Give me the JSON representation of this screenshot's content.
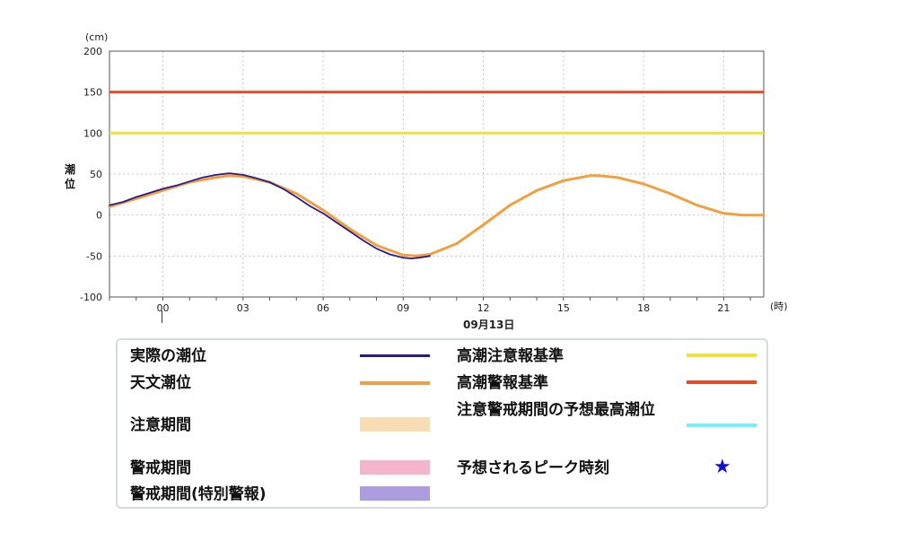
{
  "chart_data": {
    "type": "line",
    "yunit": "(cm)",
    "ylabel": "潮位",
    "xunit": "(時)",
    "date_label": "09月13日",
    "ylim": [
      -100,
      200
    ],
    "yticks": [
      200,
      150,
      100,
      50,
      0,
      -50,
      -100
    ],
    "xticks": [
      "00",
      "03",
      "06",
      "09",
      "12",
      "15",
      "18",
      "21"
    ],
    "xlim_hours": [
      -2,
      22.5
    ],
    "grid": true,
    "thresholds": [
      {
        "name": "高潮警報基準",
        "value": 150,
        "color": "#e64a2a"
      },
      {
        "name": "高潮注意報基準",
        "value": 100,
        "color": "#f0e040"
      }
    ],
    "series": [
      {
        "name": "天文潮位",
        "color": "#f0a040",
        "x": [
          -2,
          -1,
          0,
          1,
          2,
          2.5,
          3,
          4,
          5,
          6,
          7,
          8,
          9,
          9.5,
          10,
          11,
          12,
          13,
          14,
          15,
          16,
          16.3,
          17,
          18,
          19,
          20,
          21,
          21.7,
          22,
          22.5
        ],
        "y": [
          10,
          20,
          30,
          40,
          46,
          48,
          47,
          40,
          26,
          6,
          -17,
          -37,
          -49,
          -50,
          -48,
          -35,
          -12,
          12,
          30,
          42,
          48,
          48,
          46,
          38,
          26,
          12,
          2,
          0,
          0,
          0
        ]
      },
      {
        "name": "実際の潮位",
        "color": "#2a1a8c",
        "x": [
          -2,
          -1.5,
          -1,
          -0.5,
          0,
          0.5,
          1,
          1.5,
          2,
          2.5,
          3,
          3.5,
          4,
          4.5,
          5,
          5.5,
          6,
          6.5,
          7,
          7.5,
          8,
          8.5,
          9,
          9.3,
          9.6,
          10
        ],
        "y": [
          12,
          16,
          22,
          27,
          32,
          36,
          41,
          46,
          49,
          51,
          49,
          45,
          40,
          32,
          22,
          11,
          2,
          -9,
          -20,
          -31,
          -41,
          -48,
          -52,
          -53,
          -52,
          -50
        ]
      }
    ],
    "legend": [
      {
        "label": "実際の潮位",
        "kind": "line",
        "color": "#2a1a8c"
      },
      {
        "label": "天文潮位",
        "kind": "line",
        "color": "#f0a040"
      },
      {
        "label": "注意期間",
        "kind": "box",
        "color": "#f8dcb4"
      },
      {
        "label": "警戒期間",
        "kind": "box",
        "color": "#f4b4cc"
      },
      {
        "label": "警戒期間(特別警報)",
        "kind": "box",
        "color": "#ac9ce0"
      },
      {
        "label": "高潮注意報基準",
        "kind": "line",
        "color": "#f0e040"
      },
      {
        "label": "高潮警報基準",
        "kind": "line",
        "color": "#e64a2a"
      },
      {
        "label": "注意警戒期間の予想最高潮位",
        "kind": "line",
        "color": "#78f0f8"
      },
      {
        "label": "予想されるピーク時刻",
        "kind": "star",
        "color": "#1010d0",
        "symbol": "★"
      }
    ]
  }
}
